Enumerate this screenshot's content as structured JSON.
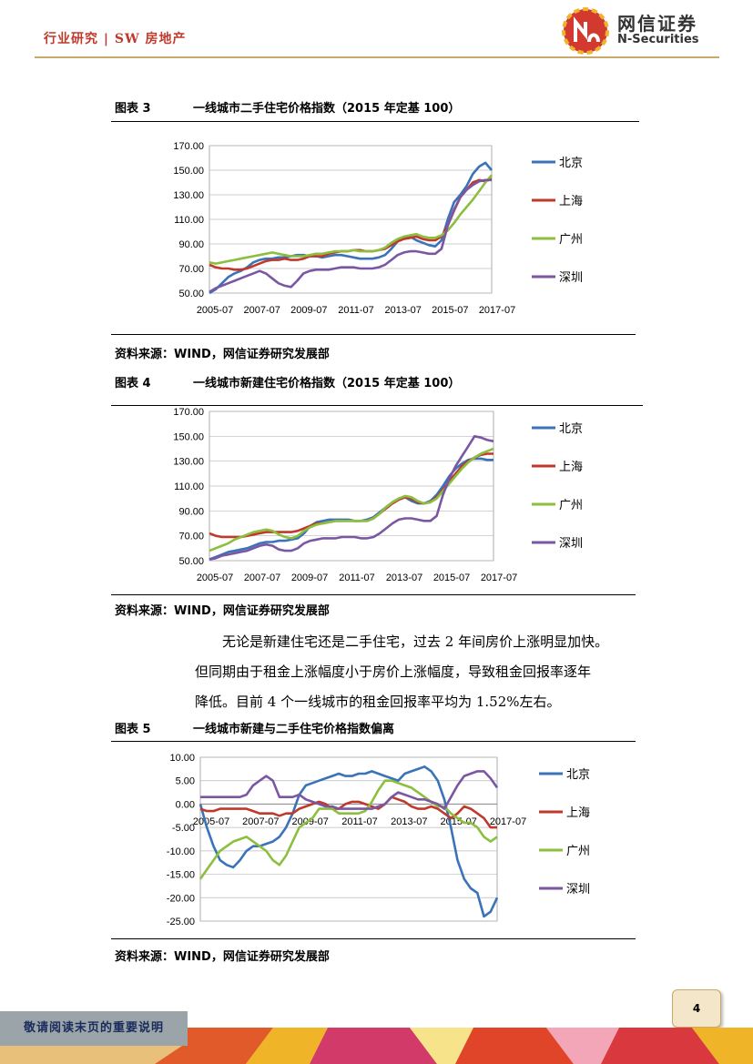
{
  "header": {
    "section": "行业研究 | SW 房地产",
    "logo_cn": "网信证券",
    "logo_en": "N-Securities"
  },
  "figures": [
    {
      "num": "图表 3",
      "title": "一线城市二手住宅价格指数（2015 年定基 100）",
      "source": "资料来源：WIND，网信证券研究发展部"
    },
    {
      "num": "图表 4",
      "title": "一线城市新建住宅价格指数（2015 年定基 100）",
      "source": "资料来源：WIND，网信证券研究发展部"
    },
    {
      "num": "图表 5",
      "title": "一线城市新建与二手住宅价格指数偏离",
      "source": "资料来源：WIND，网信证券研究发展部"
    }
  ],
  "paragraph": {
    "line1": "无论是新建住宅还是二手住宅，过去 2 年间房价上涨明显加快。",
    "line2": "但同期由于租金上涨幅度小于房价上涨幅度，导致租金回报率逐年",
    "line3": "降低。目前 4 个一线城市的租金回报率平均为 1.52%左右。"
  },
  "page_number": "4",
  "footer_note": "敬请阅读末页的重要说明",
  "chart_data": [
    {
      "type": "line",
      "x_ticks": [
        "2005-07",
        "2007-07",
        "2009-07",
        "2011-07",
        "2013-07",
        "2015-07",
        "2017-07"
      ],
      "y_ticks": [
        "170.00",
        "150.00",
        "130.00",
        "110.00",
        "90.00",
        "70.00",
        "50.00"
      ],
      "ylim": [
        50,
        170
      ],
      "grid": true,
      "legend": "right",
      "series": [
        {
          "name": "北京",
          "color": "#3a73b8",
          "values": [
            50,
            53,
            58,
            63,
            66,
            68,
            71,
            75,
            77,
            78,
            78,
            79,
            79,
            80,
            81,
            81,
            80,
            80,
            79,
            80,
            81,
            81,
            80,
            79,
            78,
            78,
            78,
            79,
            81,
            86,
            92,
            95,
            96,
            93,
            91,
            89,
            88,
            93,
            110,
            124,
            130,
            137,
            147,
            153,
            156,
            150
          ]
        },
        {
          "name": "上海",
          "color": "#c0392b",
          "values": [
            73,
            71,
            70,
            70,
            69,
            69,
            70,
            72,
            74,
            76,
            77,
            77,
            78,
            77,
            77,
            78,
            80,
            80,
            80,
            82,
            83,
            84,
            84,
            85,
            85,
            84,
            84,
            85,
            86,
            89,
            92,
            94,
            95,
            96,
            94,
            93,
            93,
            96,
            105,
            117,
            128,
            134,
            140,
            142,
            141,
            143
          ]
        },
        {
          "name": "广州",
          "color": "#8dbf3f",
          "values": [
            75,
            74,
            75,
            76,
            77,
            78,
            79,
            80,
            81,
            82,
            83,
            82,
            81,
            80,
            80,
            80,
            81,
            82,
            82,
            83,
            84,
            84,
            84,
            85,
            84,
            84,
            84,
            85,
            87,
            91,
            94,
            96,
            97,
            98,
            96,
            95,
            95,
            97,
            101,
            107,
            114,
            120,
            126,
            133,
            140,
            146
          ]
        },
        {
          "name": "深圳",
          "color": "#7b57a3",
          "values": [
            51,
            54,
            56,
            58,
            60,
            62,
            64,
            66,
            68,
            66,
            62,
            58,
            56,
            55,
            60,
            66,
            68,
            69,
            69,
            69,
            70,
            71,
            71,
            71,
            70,
            70,
            70,
            71,
            73,
            77,
            81,
            83,
            84,
            84,
            83,
            82,
            82,
            86,
            105,
            118,
            128,
            134,
            138,
            141,
            142,
            142
          ]
        }
      ]
    },
    {
      "type": "line",
      "x_ticks": [
        "2005-07",
        "2007-07",
        "2009-07",
        "2011-07",
        "2013-07",
        "2015-07",
        "2017-07"
      ],
      "y_ticks": [
        "170.00",
        "150.00",
        "130.00",
        "110.00",
        "90.00",
        "70.00",
        "50.00"
      ],
      "ylim": [
        50,
        170
      ],
      "grid": true,
      "legend": "right",
      "series": [
        {
          "name": "北京",
          "color": "#3a73b8",
          "values": [
            51,
            53,
            55,
            57,
            58,
            59,
            60,
            62,
            64,
            65,
            65,
            66,
            66,
            67,
            68,
            72,
            78,
            81,
            82,
            83,
            83,
            83,
            83,
            82,
            82,
            83,
            85,
            89,
            93,
            97,
            100,
            101,
            98,
            96,
            96,
            98,
            103,
            110,
            118,
            124,
            128,
            131,
            132,
            132,
            131,
            131
          ]
        },
        {
          "name": "上海",
          "color": "#c0392b",
          "values": [
            72,
            70,
            69,
            69,
            69,
            69,
            70,
            71,
            72,
            73,
            73,
            73,
            73,
            73,
            74,
            76,
            78,
            80,
            80,
            81,
            82,
            82,
            82,
            82,
            82,
            82,
            84,
            88,
            92,
            96,
            99,
            101,
            100,
            97,
            96,
            97,
            101,
            107,
            114,
            120,
            126,
            130,
            133,
            135,
            136,
            136
          ]
        },
        {
          "name": "广州",
          "color": "#8dbf3f",
          "values": [
            58,
            60,
            62,
            64,
            67,
            69,
            71,
            73,
            74,
            75,
            74,
            71,
            69,
            68,
            70,
            74,
            77,
            79,
            80,
            81,
            82,
            82,
            82,
            82,
            82,
            82,
            84,
            88,
            93,
            97,
            100,
            102,
            101,
            98,
            96,
            97,
            100,
            106,
            112,
            118,
            124,
            129,
            133,
            136,
            138,
            140
          ]
        },
        {
          "name": "深圳",
          "color": "#7b57a3",
          "values": [
            51,
            52,
            54,
            55,
            56,
            57,
            58,
            60,
            62,
            63,
            62,
            59,
            58,
            58,
            60,
            64,
            66,
            67,
            68,
            68,
            68,
            69,
            69,
            69,
            68,
            68,
            69,
            72,
            76,
            80,
            83,
            84,
            84,
            83,
            82,
            82,
            86,
            103,
            116,
            126,
            134,
            142,
            150,
            149,
            147,
            146
          ]
        }
      ]
    },
    {
      "type": "line",
      "x_ticks": [
        "2005-07",
        "2007-07",
        "2009-07",
        "2011-07",
        "2013-07",
        "2015-07",
        "2017-07"
      ],
      "y_ticks": [
        "10.00",
        "5.00",
        "0.00",
        "-5.00",
        "-10.00",
        "-15.00",
        "-20.00",
        "-25.00"
      ],
      "ylim": [
        -25,
        10
      ],
      "grid": true,
      "legend": "right",
      "series": [
        {
          "name": "北京",
          "color": "#3a73b8",
          "values": [
            0,
            -5,
            -9,
            -12,
            -13,
            -13.5,
            -12,
            -10,
            -9,
            -9,
            -8.5,
            -8,
            -7,
            -5,
            -2,
            2,
            4,
            4.5,
            5,
            5.5,
            6,
            6.5,
            6,
            6,
            6.5,
            6.5,
            7,
            6.5,
            6,
            5.5,
            5,
            6.5,
            7,
            7.5,
            8,
            7,
            5,
            1,
            -5,
            -12,
            -16,
            -18,
            -19,
            -24,
            -23,
            -20
          ]
        },
        {
          "name": "上海",
          "color": "#c0392b",
          "values": [
            -1,
            -1.5,
            -1.5,
            -1,
            -1,
            -1,
            -1,
            -1,
            -1.5,
            -2,
            -2,
            -2,
            -2.5,
            -2,
            -2,
            -1,
            -0.5,
            0,
            0.5,
            0,
            -1,
            -1,
            0,
            0.5,
            0.5,
            0,
            -0.5,
            -1,
            0,
            1.5,
            1,
            0.5,
            -0.5,
            -1,
            -1,
            -0.5,
            -1,
            -2,
            -3,
            -2,
            -0.5,
            -1,
            -2,
            -3,
            -5,
            -5
          ]
        },
        {
          "name": "广州",
          "color": "#8dbf3f",
          "values": [
            -16,
            -14,
            -12,
            -10,
            -9,
            -8,
            -7.5,
            -7,
            -8,
            -9,
            -10,
            -12,
            -13,
            -11,
            -8,
            -5,
            -4,
            -3,
            -1,
            -1,
            -1,
            -2,
            -2,
            -2,
            -2,
            -1.5,
            0.5,
            3,
            5,
            5,
            4.5,
            4,
            3.5,
            2.5,
            1.5,
            0.5,
            -0.5,
            -0.5,
            -2,
            -3,
            -4,
            -4,
            -5,
            -7,
            -8,
            -7
          ]
        },
        {
          "name": "深圳",
          "color": "#7b57a3",
          "values": [
            1.5,
            1.5,
            1.5,
            1.5,
            1.5,
            1.5,
            1.5,
            2,
            4,
            5,
            6,
            5,
            1.5,
            1.5,
            1.5,
            2,
            1,
            0.5,
            0,
            -0.5,
            -0.5,
            -1,
            -1,
            -1,
            -1,
            -1,
            -1,
            -0.5,
            0,
            1.5,
            2.5,
            2,
            1.5,
            1,
            1,
            0.5,
            0,
            -1,
            1.5,
            4,
            6,
            6.5,
            7,
            7,
            5.5,
            3.5
          ]
        }
      ]
    }
  ]
}
